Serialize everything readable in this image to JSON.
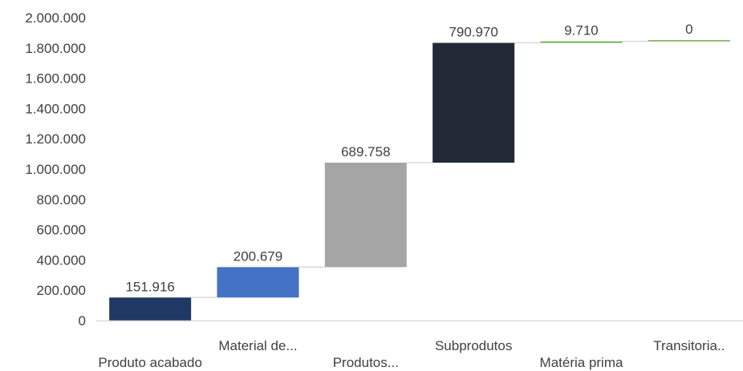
{
  "chart_data": {
    "type": "bar",
    "subtype": "waterfall",
    "categories": [
      "Produto acabado",
      "Material de...",
      "Produtos...",
      "Subprodutos",
      "Matéria prima",
      "Transitoria.."
    ],
    "values": [
      151916,
      200679,
      689758,
      790970,
      9710,
      0
    ],
    "data_labels": [
      "151.916",
      "200.679",
      "689.758",
      "790.970",
      "9.710",
      "0"
    ],
    "colors": [
      "#1f3864",
      "#4472c4",
      "#a5a5a5",
      "#222a35",
      "#70ad47",
      "#70ad47"
    ],
    "ylim": [
      0,
      2000000
    ],
    "yticks": [
      0,
      200000,
      400000,
      600000,
      800000,
      1000000,
      1200000,
      1400000,
      1600000,
      1800000,
      2000000
    ],
    "ytick_labels": [
      "0",
      "200.000",
      "400.000",
      "600.000",
      "800.000",
      "1.000.000",
      "1.200.000",
      "1.400.000",
      "1.600.000",
      "1.800.000",
      "2.000.000"
    ],
    "connector_color": "#d9d9d9",
    "axis_color": "#d9d9d9",
    "grid": false,
    "legend": "none",
    "title": "",
    "xlabel": "",
    "ylabel": ""
  }
}
